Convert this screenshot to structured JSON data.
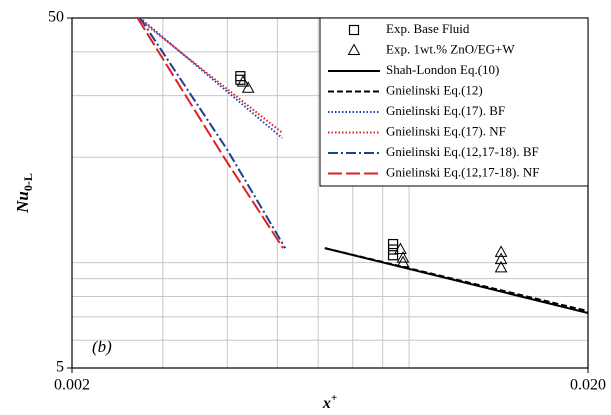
{
  "chart_data": {
    "type": "line",
    "log_x": true,
    "log_y": true,
    "xlim": [
      0.002,
      0.02
    ],
    "ylim": [
      5,
      50
    ],
    "xticks": [
      0.002,
      {
        "value": 0.02,
        "label": "0.020"
      }
    ],
    "yticks": [
      5,
      50
    ],
    "xgrid": [
      0.003,
      0.004,
      0.005,
      0.006,
      0.007,
      0.008,
      0.009
    ],
    "ygrid": [
      6,
      7,
      8,
      9,
      10,
      20,
      30,
      40
    ],
    "grid": true,
    "legend": "upper right",
    "xlabel": "x",
    "xlabel_sup": "+",
    "ylabel": "Nu",
    "ylabel_sub": "0-L",
    "annotation": "(b)",
    "series": [
      {
        "name": "Exp. Base Fluid",
        "color": "#000000",
        "marker": "square",
        "line": "none",
        "x": [
          0.00424,
          0.00424,
          0.00838,
          0.00838,
          0.00838
        ],
        "values": [
          34.1,
          33.3,
          11.3,
          10.9,
          10.5
        ]
      },
      {
        "name": "Exp. 1wt.% ZnO/EG+W",
        "color": "#000000",
        "marker": "triangle",
        "line": "none",
        "x": [
          0.00429,
          0.00439,
          0.00866,
          0.00876,
          0.00876,
          0.01357,
          0.01357,
          0.01357
        ],
        "values": [
          32.8,
          31.5,
          10.9,
          10.3,
          10.0,
          10.7,
          10.2,
          9.66
        ]
      },
      {
        "name": "Shah-London Eq.(10)",
        "color": "#000000",
        "line": "solid",
        "x": [
          0.00618,
          0.02
        ],
        "values": [
          11.0,
          7.18
        ]
      },
      {
        "name": "Gnielinski Eq.(12)",
        "color": "#000000",
        "line": "dashed",
        "x": [
          0.00618,
          0.02
        ],
        "values": [
          11.0,
          7.27
        ]
      },
      {
        "name": "Gnielinski Eq.(17). BF",
        "color": "#1f3fbf",
        "line": "dotted",
        "x": [
          0.00271,
          0.00511
        ],
        "values": [
          50,
          22.7
        ]
      },
      {
        "name": "Gnielinski Eq.(17). NF",
        "color": "#e02020",
        "line": "dotted",
        "x": [
          0.00268,
          0.00511
        ],
        "values": [
          50,
          23.5
        ]
      },
      {
        "name": "Gnielinski Eq.(12,17-18). BF",
        "color": "#1f3f8f",
        "line": "dashdot",
        "x": [
          0.00271,
          0.004,
          0.00518
        ],
        "values": [
          50,
          21.0,
          11.0
        ]
      },
      {
        "name": "Gnielinski Eq.(12,17-18). NF",
        "color": "#e02020",
        "line": "longdash",
        "x": [
          0.00268,
          0.00394,
          0.00513
        ],
        "values": [
          50,
          20.0,
          11.0
        ]
      }
    ]
  }
}
